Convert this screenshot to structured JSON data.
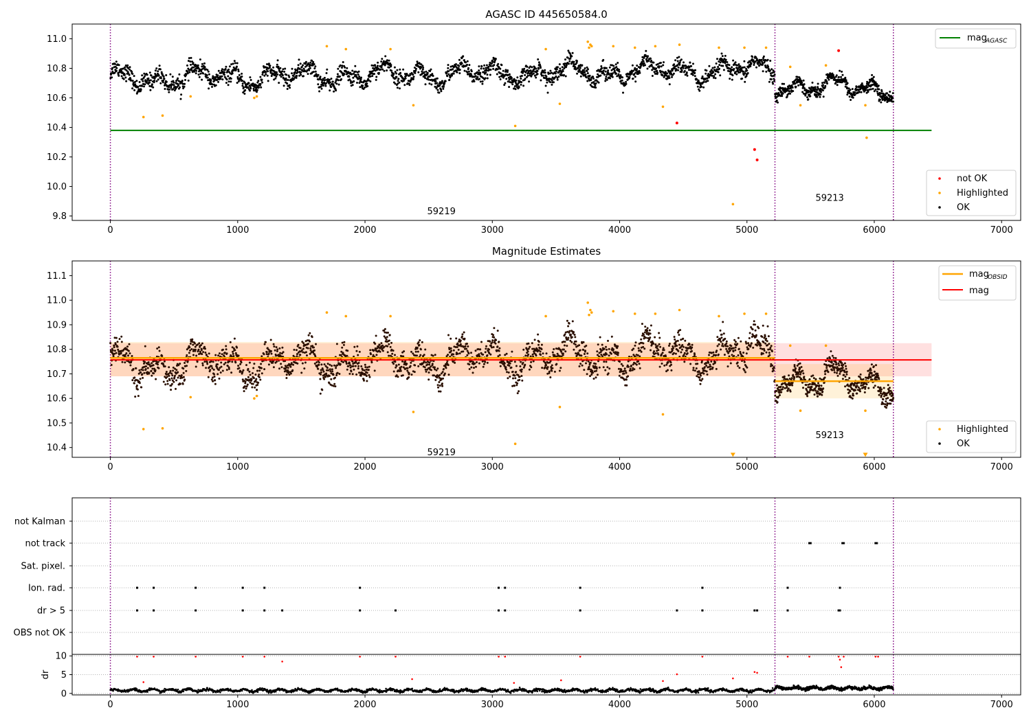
{
  "chart_data": [
    {
      "type": "scatter",
      "title": "AGASC ID 445650584.0",
      "xlim": [
        -300,
        7150
      ],
      "ylim": [
        9.77,
        11.1
      ],
      "xticks": [
        0,
        1000,
        2000,
        3000,
        4000,
        5000,
        6000,
        7000
      ],
      "yticks": [
        9.8,
        10.0,
        10.2,
        10.4,
        10.6,
        10.8,
        11.0
      ],
      "yticklabels": [
        "9.8",
        "10.0",
        "10.2",
        "10.4",
        "10.6",
        "10.8",
        "11.0"
      ],
      "xticklabels": [
        "0",
        "1000",
        "2000",
        "3000",
        "4000",
        "5000",
        "6000",
        "7000"
      ],
      "legend_upper": {
        "position": "top-right",
        "entries": [
          {
            "label": "mag",
            "sub": "AGASC",
            "color": "#008000",
            "kind": "line"
          }
        ]
      },
      "legend_lower": {
        "position": "bottom-right",
        "entries": [
          {
            "label": "not OK",
            "color": "#ff0000",
            "kind": "dot"
          },
          {
            "label": "Highlighted",
            "color": "#ffa500",
            "kind": "dot"
          },
          {
            "label": "OK",
            "color": "#000000",
            "kind": "dot"
          }
        ]
      },
      "mag_agasc": 10.38,
      "mag_agasc_x": [
        0,
        6450
      ],
      "obsid_boundaries": [
        0,
        5220,
        6150
      ],
      "obsid_labels": [
        {
          "text": "59219",
          "x": 2600,
          "y": 9.83
        },
        {
          "text": "59213",
          "x": 5650,
          "y": 9.92
        }
      ],
      "series": [
        {
          "name": "OK",
          "color": "#000000",
          "segments": [
            {
              "x0": 0,
              "x1": 5220,
              "n": 2200,
              "base_start": 10.73,
              "base_end": 10.79,
              "spread": 0.06
            },
            {
              "x0": 5220,
              "x1": 6150,
              "n": 500,
              "base_start": 10.69,
              "base_end": 10.66,
              "spread": 0.045
            }
          ]
        },
        {
          "name": "Highlighted",
          "color": "#ffa500",
          "points": [
            [
              260,
              10.47
            ],
            [
              410,
              10.48
            ],
            [
              630,
              10.61
            ],
            [
              1130,
              10.6
            ],
            [
              1150,
              10.61
            ],
            [
              1700,
              10.95
            ],
            [
              1850,
              10.93
            ],
            [
              2200,
              10.93
            ],
            [
              2380,
              10.55
            ],
            [
              3180,
              10.41
            ],
            [
              3420,
              10.93
            ],
            [
              3530,
              10.56
            ],
            [
              3750,
              10.98
            ],
            [
              3770,
              10.96
            ],
            [
              3780,
              10.95
            ],
            [
              3760,
              10.94
            ],
            [
              3950,
              10.95
            ],
            [
              4120,
              10.94
            ],
            [
              4280,
              10.95
            ],
            [
              4340,
              10.54
            ],
            [
              4470,
              10.96
            ],
            [
              4780,
              10.94
            ],
            [
              4890,
              9.88
            ],
            [
              4980,
              10.94
            ],
            [
              5150,
              10.94
            ],
            [
              5340,
              10.81
            ],
            [
              5420,
              10.55
            ],
            [
              5620,
              10.82
            ],
            [
              5930,
              10.55
            ],
            [
              5940,
              10.33
            ]
          ]
        },
        {
          "name": "not OK",
          "color": "#ff0000",
          "points": [
            [
              4450,
              10.43
            ],
            [
              5060,
              10.25
            ],
            [
              5080,
              10.18
            ],
            [
              5720,
              10.92
            ]
          ]
        }
      ]
    },
    {
      "type": "scatter",
      "title": "Magnitude Estimates",
      "xlim": [
        -300,
        7150
      ],
      "ylim": [
        10.36,
        11.16
      ],
      "xticks": [
        0,
        1000,
        2000,
        3000,
        4000,
        5000,
        6000,
        7000
      ],
      "yticks": [
        10.4,
        10.5,
        10.6,
        10.7,
        10.8,
        10.9,
        11.0,
        11.1
      ],
      "yticklabels": [
        "10.4",
        "10.5",
        "10.6",
        "10.7",
        "10.8",
        "10.9",
        "11.0",
        "11.1"
      ],
      "xticklabels": [
        "0",
        "1000",
        "2000",
        "3000",
        "4000",
        "5000",
        "6000",
        "7000"
      ],
      "legend_upper": {
        "position": "top-right",
        "entries": [
          {
            "label": "mag",
            "sub": "OBSID",
            "color": "#ffa500",
            "kind": "line"
          },
          {
            "label": "mag",
            "sub": "",
            "color": "#ff0000",
            "kind": "line"
          }
        ]
      },
      "legend_lower": {
        "position": "bottom-right",
        "entries": [
          {
            "label": "Highlighted",
            "color": "#ffa500",
            "kind": "dot"
          },
          {
            "label": "OK",
            "color": "#000000",
            "kind": "dot"
          }
        ]
      },
      "mag": 10.757,
      "mag_band": [
        10.69,
        10.825
      ],
      "mag_x": [
        0,
        6450
      ],
      "mag_obsid": [
        {
          "x0": 0,
          "x1": 5220,
          "value": 10.765,
          "band": [
            10.69,
            10.83
          ]
        },
        {
          "x0": 5220,
          "x1": 6150,
          "value": 10.67,
          "band": [
            10.6,
            10.74
          ]
        }
      ],
      "obsid_boundaries": [
        0,
        5220,
        6150
      ],
      "obsid_labels": [
        {
          "text": "59219",
          "x": 2600,
          "y": 10.38
        },
        {
          "text": "59213",
          "x": 5650,
          "y": 10.45
        }
      ],
      "series": [
        {
          "name": "OK",
          "color": "#2a0f00",
          "segments": [
            {
              "x0": 0,
              "x1": 5220,
              "n": 2200,
              "base_start": 10.73,
              "base_end": 10.79,
              "spread": 0.06
            },
            {
              "x0": 5220,
              "x1": 6150,
              "n": 500,
              "base_start": 10.69,
              "base_end": 10.66,
              "spread": 0.045
            }
          ]
        },
        {
          "name": "Highlighted",
          "color": "#ffa500",
          "points": [
            [
              260,
              10.475
            ],
            [
              410,
              10.478
            ],
            [
              630,
              10.605
            ],
            [
              1130,
              10.6
            ],
            [
              1150,
              10.61
            ],
            [
              1700,
              10.95
            ],
            [
              1850,
              10.935
            ],
            [
              2200,
              10.935
            ],
            [
              2380,
              10.545
            ],
            [
              3180,
              10.415
            ],
            [
              3420,
              10.935
            ],
            [
              3530,
              10.565
            ],
            [
              3750,
              10.99
            ],
            [
              3770,
              10.96
            ],
            [
              3780,
              10.95
            ],
            [
              3760,
              10.94
            ],
            [
              3950,
              10.955
            ],
            [
              4120,
              10.945
            ],
            [
              4280,
              10.945
            ],
            [
              4340,
              10.535
            ],
            [
              4470,
              10.96
            ],
            [
              4780,
              10.935
            ],
            [
              4980,
              10.945
            ],
            [
              5150,
              10.945
            ],
            [
              5340,
              10.815
            ],
            [
              5420,
              10.55
            ],
            [
              5620,
              10.815
            ],
            [
              5930,
              10.55
            ]
          ]
        },
        {
          "name": "Highlighted (below range)",
          "color": "#ffa500",
          "points": [
            [
              4890,
              10.37
            ],
            [
              5930,
              10.37
            ]
          ]
        }
      ]
    },
    {
      "type": "scatter",
      "title": "",
      "xlim": [
        -300,
        7150
      ],
      "xticks": [
        0,
        1000,
        2000,
        3000,
        4000,
        5000,
        6000,
        7000
      ],
      "xticklabels": [
        "0",
        "1000",
        "2000",
        "3000",
        "4000",
        "5000",
        "6000",
        "7000"
      ],
      "categories": [
        "not Kalman",
        "not track",
        "Sat. pixel.",
        "Ion. rad.",
        "dr > 5",
        "OBS not OK"
      ],
      "flags": {
        "not track": [
          5490,
          5500,
          5750,
          5760,
          6010,
          6020
        ],
        "Ion. rad.": [
          210,
          340,
          670,
          1040,
          1210,
          1960,
          3050,
          3100,
          3690,
          4650,
          5320,
          5730
        ],
        "dr > 5": [
          210,
          340,
          670,
          1040,
          1210,
          1350,
          1960,
          2240,
          3050,
          3100,
          3690,
          4450,
          4650,
          5060,
          5080,
          5320,
          5720,
          5730
        ],
        "not Kalman": [],
        "Sat. pixel.": [],
        "OBS not OK": []
      },
      "obsid_boundaries": [
        0,
        5220,
        6150
      ],
      "dr_panel": {
        "ylabel": "dr",
        "ylim": [
          -0.4,
          10.4
        ],
        "yticks": [
          0,
          5,
          10
        ],
        "yticklabels": [
          "0",
          "5",
          "10"
        ],
        "red_points": [
          [
            210,
            9.8
          ],
          [
            260,
            3.0
          ],
          [
            340,
            9.8
          ],
          [
            670,
            9.8
          ],
          [
            1040,
            9.8
          ],
          [
            1210,
            9.8
          ],
          [
            1350,
            8.5
          ],
          [
            1960,
            9.8
          ],
          [
            2240,
            9.8
          ],
          [
            2370,
            3.8
          ],
          [
            3050,
            9.8
          ],
          [
            3100,
            9.8
          ],
          [
            3170,
            2.8
          ],
          [
            3540,
            3.5
          ],
          [
            3690,
            9.8
          ],
          [
            4340,
            3.3
          ],
          [
            4450,
            5.1
          ],
          [
            4650,
            9.8
          ],
          [
            4890,
            4.0
          ],
          [
            5060,
            5.7
          ],
          [
            5080,
            5.5
          ],
          [
            5320,
            9.8
          ],
          [
            5490,
            9.8
          ],
          [
            5720,
            9.8
          ],
          [
            5730,
            9.0
          ],
          [
            5740,
            7.0
          ],
          [
            5760,
            9.8
          ],
          [
            6010,
            9.8
          ],
          [
            6030,
            9.8
          ]
        ],
        "black_segments": [
          {
            "x0": 0,
            "x1": 5220,
            "n": 1700,
            "base": 0.8,
            "spread": 0.45
          },
          {
            "x0": 5220,
            "x1": 6150,
            "n": 500,
            "base": 1.4,
            "spread": 0.55
          }
        ]
      }
    }
  ]
}
